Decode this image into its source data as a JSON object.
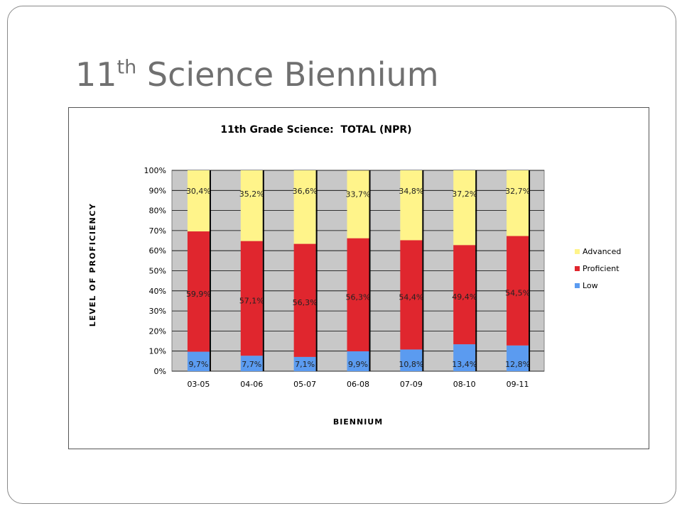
{
  "slide": {
    "title_main": "11",
    "title_sup": "th",
    "title_rest": " Science Biennium"
  },
  "chart_data": {
    "type": "bar",
    "stacked": true,
    "title": "11th Grade Science:  TOTAL (NPR)",
    "xlabel": "BIENNIUM",
    "ylabel": "LEVEL OF PROFICIENCY",
    "categories": [
      "03-05",
      "04-06",
      "05-07",
      "06-08",
      "07-09",
      "08-10",
      "09-11"
    ],
    "ylim": [
      0,
      100
    ],
    "y_ticks": [
      "0%",
      "10%",
      "20%",
      "30%",
      "40%",
      "50%",
      "60%",
      "70%",
      "80%",
      "90%",
      "100%"
    ],
    "grid": true,
    "legend_position": "right",
    "series": [
      {
        "name": "Low",
        "color": "#5b9bf0",
        "values": [
          9.7,
          7.7,
          7.1,
          9.9,
          10.8,
          13.4,
          12.8
        ],
        "labels": [
          "9,7%",
          "7,7%",
          "7,1%",
          "9,9%",
          "10,8%",
          "13,4%",
          "12,8%"
        ]
      },
      {
        "name": "Proficient",
        "color": "#e0262e",
        "values": [
          59.9,
          57.1,
          56.3,
          56.3,
          54.4,
          49.4,
          54.5
        ],
        "labels": [
          "59,9%",
          "57,1%",
          "56,3%",
          "56,3%",
          "54,4%",
          "49,4%",
          "54,5%"
        ]
      },
      {
        "name": "Advanced",
        "color": "#fff48a",
        "values": [
          30.4,
          35.2,
          36.6,
          33.7,
          34.8,
          37.2,
          32.7
        ],
        "labels": [
          "30,4%",
          "35,2%",
          "36,6%",
          "33,7%",
          "34,8%",
          "37,2%",
          "32,7%"
        ]
      }
    ],
    "legend_order": [
      "Advanced",
      "Proficient",
      "Low"
    ],
    "plot_background": "#c8c8c8"
  }
}
